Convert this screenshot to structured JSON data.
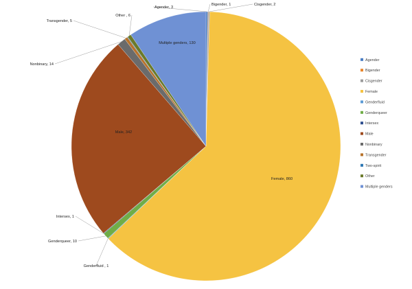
{
  "chart_data": {
    "type": "pie",
    "title": "",
    "legend_position": "right",
    "categories": [
      "Agender",
      "Bigender",
      "Cisgender",
      "Female",
      "Genderfluid",
      "Genderqueer",
      "Intersex",
      "Male",
      "Nonbinary",
      "Transgender",
      "Two-spirit",
      "Other",
      "Multiple genders"
    ],
    "values": [
      3,
      1,
      2,
      860,
      1,
      10,
      1,
      342,
      14,
      5,
      1,
      6,
      130
    ],
    "labels": [
      "Agender, 3",
      "Bigender, 1",
      "Cisgender, 2",
      "Female, 860",
      "Genderfluid , 1",
      "Genderqueer, 10",
      "Intersex, 1",
      "Male, 342",
      "Nonbinary, 14",
      "Transgender, 5",
      "",
      "Other , 6",
      "Multiple genders, 130"
    ],
    "colors": [
      "#4a7ec4",
      "#e8862c",
      "#9c9c9c",
      "#f5c342",
      "#5b9bd5",
      "#70ad47",
      "#2f4f8f",
      "#9e4a1e",
      "#6b6b6b",
      "#b8732c",
      "#2e78b4",
      "#6b7a2a",
      "#6f91d4"
    ]
  }
}
